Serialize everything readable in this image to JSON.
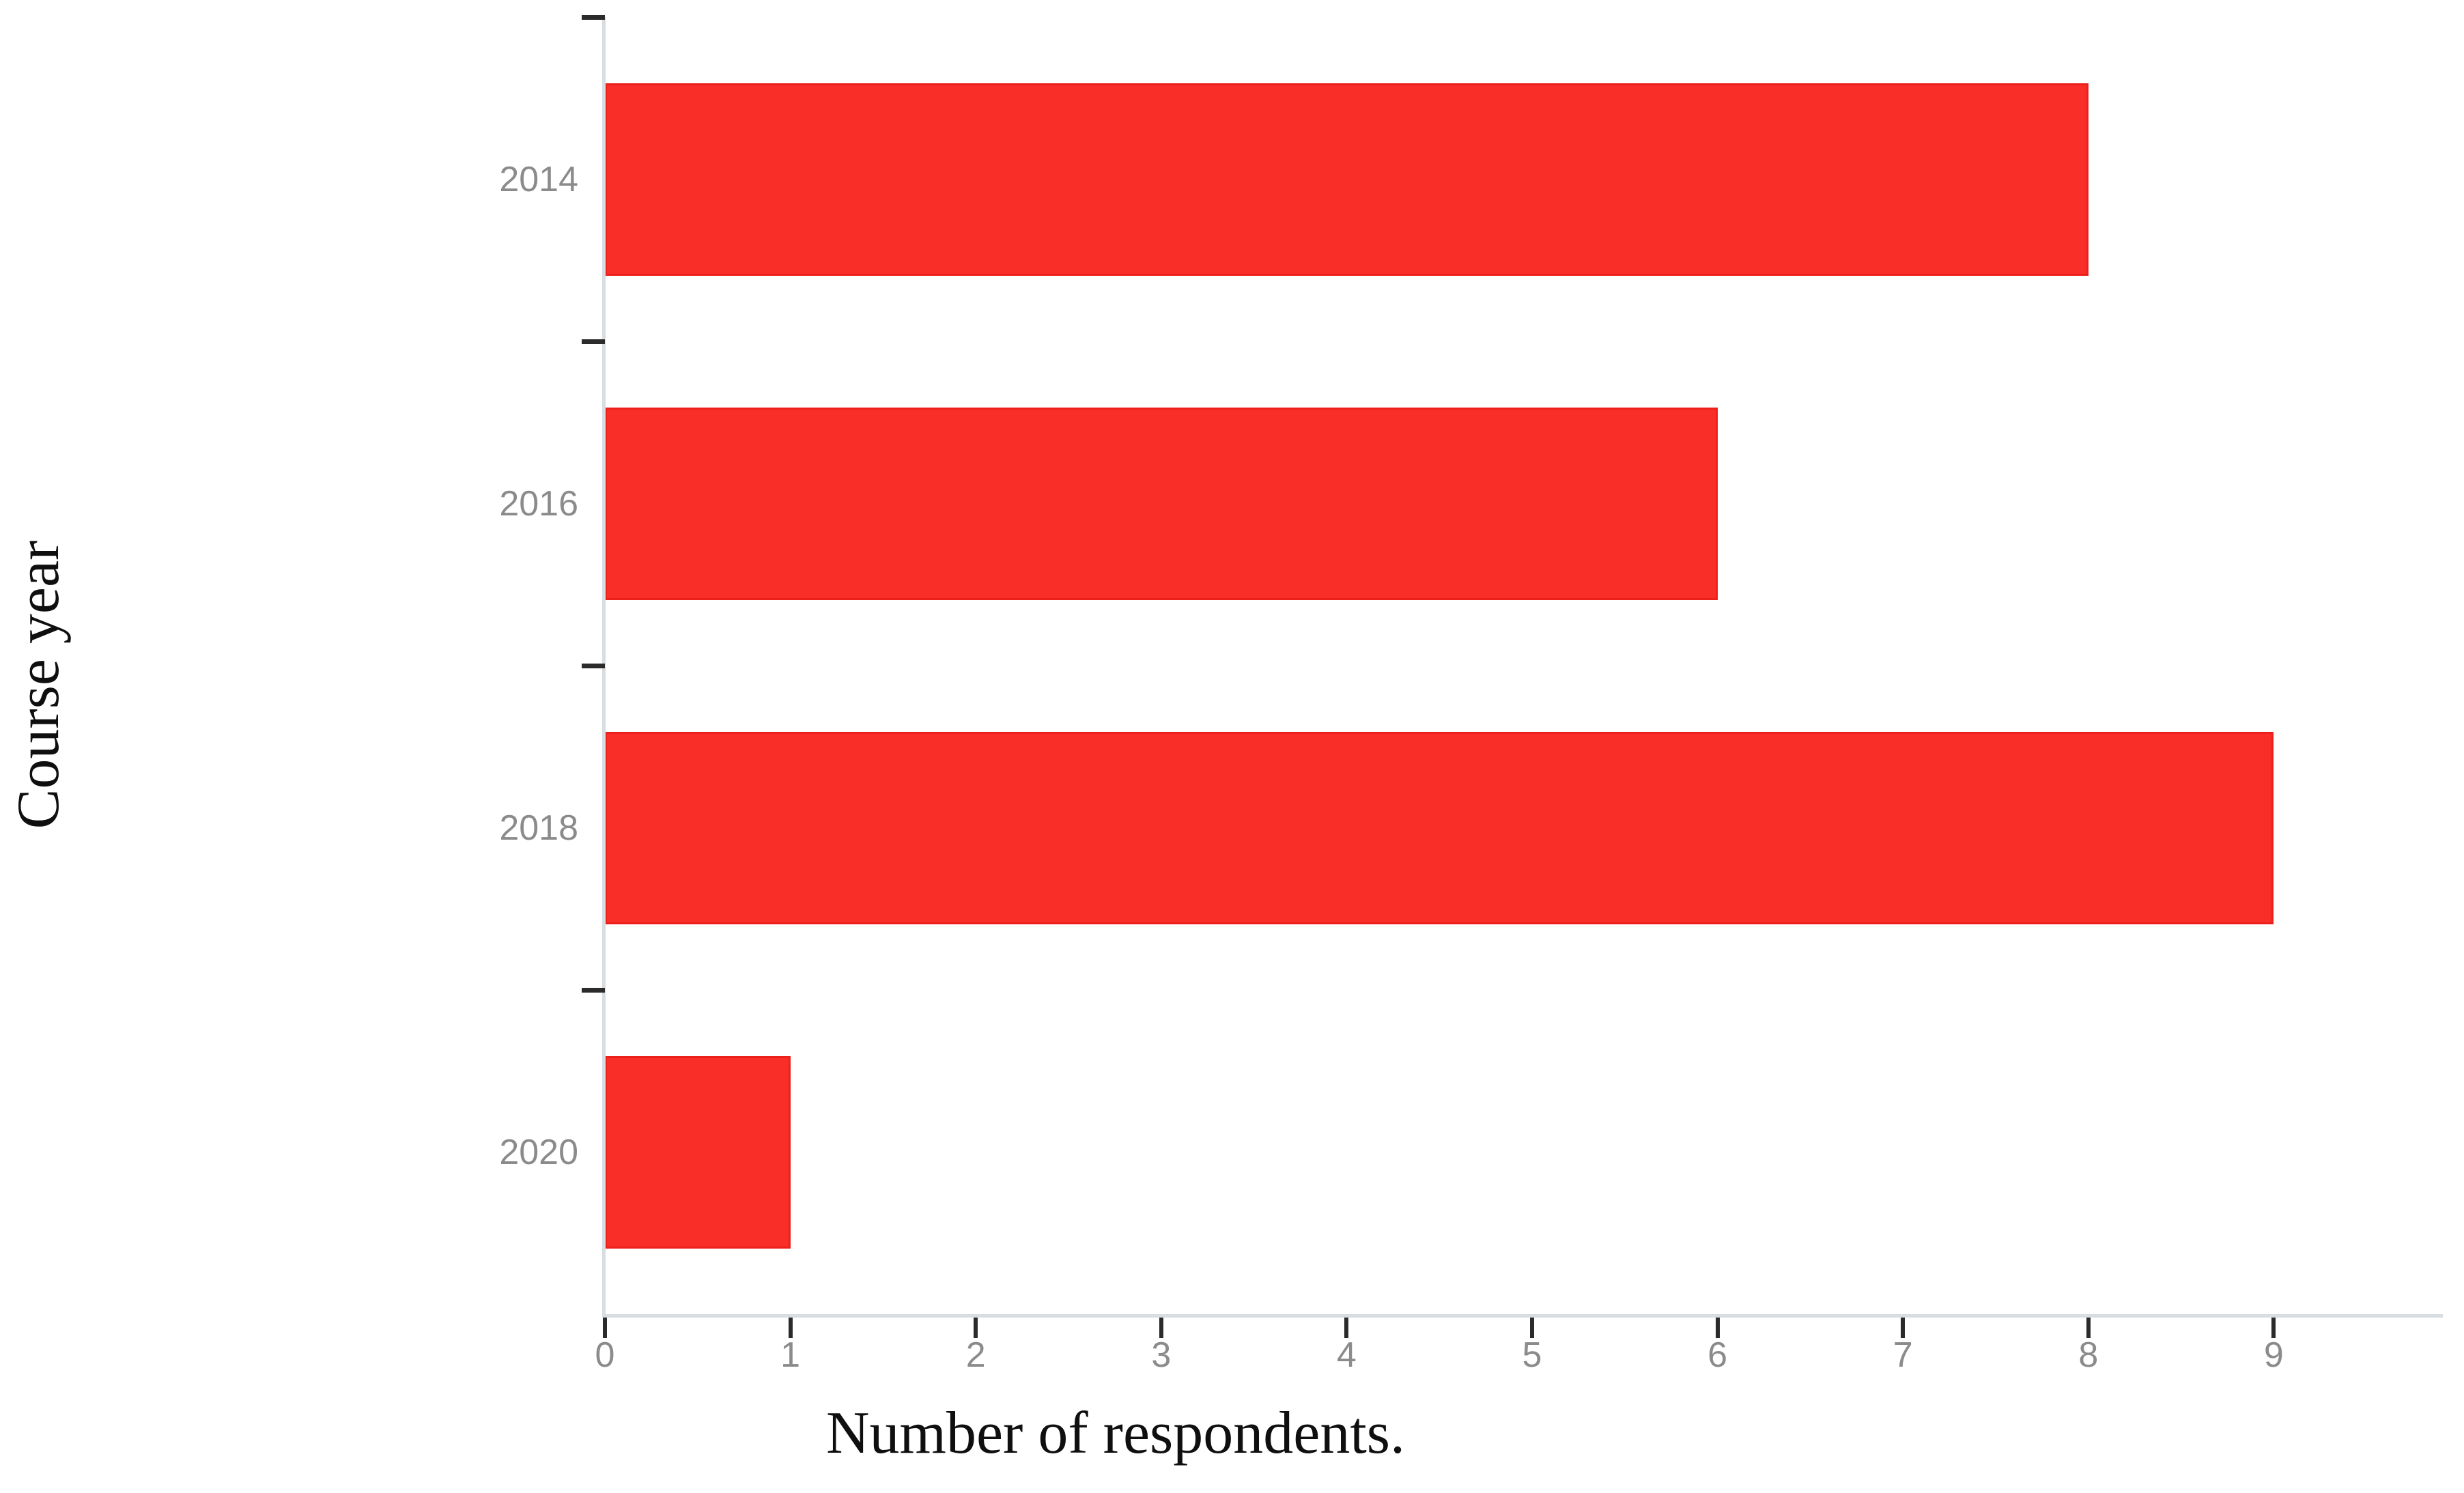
{
  "chart_data": {
    "type": "bar",
    "orientation": "horizontal",
    "categories": [
      "2014",
      "2016",
      "2018",
      "2020"
    ],
    "values": [
      8,
      6,
      9,
      1
    ],
    "xlabel": "Number of respondents.",
    "ylabel": "Course year",
    "xticks": [
      "0",
      "1",
      "2",
      "3",
      "4",
      "5",
      "6",
      "7",
      "8",
      "9"
    ],
    "xlim": [
      0,
      9.9
    ],
    "grid": false,
    "legend": "none",
    "colors": {
      "bar_fill": "#fa2e28",
      "bar_border": "#ec211c",
      "axis_line": "#d8dde2",
      "tick_mark": "#2b2b2b",
      "tick_label": "#8b8b8b",
      "axis_title": "#0f0f0f"
    }
  }
}
